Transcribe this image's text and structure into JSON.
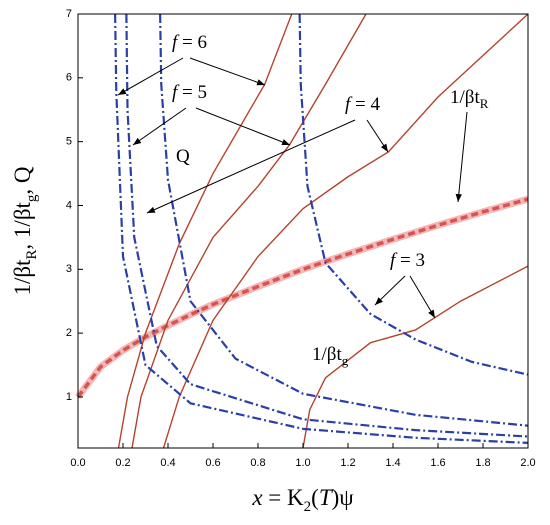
{
  "chart_data": {
    "type": "line",
    "xlim": [
      0,
      2
    ],
    "ylim": [
      0.2,
      7
    ],
    "xticks": [
      {
        "value": 0,
        "label": "0.0"
      },
      {
        "value": 0.2,
        "label": "0.2"
      },
      {
        "value": 0.4,
        "label": "0.4"
      },
      {
        "value": 0.6,
        "label": "0.6"
      },
      {
        "value": 0.8,
        "label": "0.8"
      },
      {
        "value": 1,
        "label": "1.0"
      },
      {
        "value": 1.2,
        "label": "1.2"
      },
      {
        "value": 1.4,
        "label": "1.4"
      },
      {
        "value": 1.6,
        "label": "1.6"
      },
      {
        "value": 1.8,
        "label": "1.8"
      },
      {
        "value": 2,
        "label": "2.0"
      }
    ],
    "yticks": [
      1,
      2,
      3,
      4,
      5,
      6,
      7
    ],
    "xlabel": [
      {
        "text": "x",
        "italic": true
      },
      {
        "text": " = K"
      },
      {
        "text": "2",
        "sub": true
      },
      {
        "text": "("
      },
      {
        "text": "T",
        "italic": true
      },
      {
        "text": ")ψ"
      }
    ],
    "ylabel": [
      {
        "text": "1/βt"
      },
      {
        "text": "R",
        "sub": true
      },
      {
        "text": ", 1/βt"
      },
      {
        "text": "g",
        "sub": true
      },
      {
        "text": ", Q"
      }
    ],
    "series": [
      {
        "color": "#d9534f",
        "style": "dashed",
        "x": [
          0,
          0.1,
          0.2,
          0.3,
          0.4,
          0.5,
          0.6,
          0.8,
          1.0,
          1.2,
          1.4,
          1.6,
          1.8,
          2.0
        ],
        "values": [
          1,
          1.47,
          1.73,
          1.94,
          2.12,
          2.29,
          2.45,
          2.73,
          3.0,
          3.24,
          3.47,
          3.69,
          3.9,
          4.1
        ]
      },
      {
        "color": "#b5432e",
        "style": "solid",
        "x": [
          0.18,
          0.22,
          0.3,
          0.45,
          0.6,
          0.83,
          0.95
        ],
        "values": [
          0.2,
          1.0,
          2.0,
          3.4,
          4.5,
          5.9,
          7
        ]
      },
      {
        "color": "#b5432e",
        "style": "solid",
        "x": [
          0.24,
          0.28,
          0.4,
          0.6,
          0.8,
          0.94,
          1.1,
          1.28
        ],
        "values": [
          0.2,
          1.0,
          2.2,
          3.5,
          4.3,
          4.95,
          5.9,
          7
        ]
      },
      {
        "color": "#b5432e",
        "style": "solid",
        "x": [
          0.38,
          0.45,
          0.6,
          0.8,
          1.0,
          1.2,
          1.38,
          1.6,
          1.8,
          2.0
        ],
        "values": [
          0.2,
          1.0,
          2.2,
          3.2,
          3.95,
          4.45,
          4.84,
          5.7,
          6.35,
          7
        ]
      },
      {
        "color": "#b5432e",
        "style": "solid",
        "x": [
          1.0,
          1.03,
          1.1,
          1.3,
          1.5,
          1.7,
          2.0
        ],
        "values": [
          0.2,
          0.8,
          1.3,
          1.85,
          2.05,
          2.5,
          3.05
        ]
      },
      {
        "color": "#2b3fa8",
        "style": "dashdot",
        "x": [
          0.165,
          0.17,
          0.2,
          0.3,
          0.5,
          1.0,
          1.5,
          2.0
        ],
        "values": [
          7,
          5.8,
          3.2,
          1.5,
          0.9,
          0.5,
          0.36,
          0.28
        ]
      },
      {
        "color": "#2b3fa8",
        "style": "dashdot",
        "x": [
          0.215,
          0.22,
          0.25,
          0.35,
          0.5,
          1.0,
          1.5,
          2.0
        ],
        "values": [
          7,
          5.5,
          3.5,
          1.8,
          1.2,
          0.65,
          0.48,
          0.38
        ]
      },
      {
        "color": "#2b3fa8",
        "style": "dashdot",
        "x": [
          0.365,
          0.37,
          0.4,
          0.5,
          0.7,
          1.0,
          1.5,
          2.0
        ],
        "values": [
          7,
          5.9,
          4.4,
          2.5,
          1.6,
          1.05,
          0.72,
          0.55
        ]
      },
      {
        "color": "#2b3fa8",
        "style": "dashdot",
        "x": [
          0.985,
          0.99,
          1.02,
          1.1,
          1.3,
          1.5,
          1.75,
          2.0
        ],
        "values": [
          7,
          5.9,
          4.3,
          3.1,
          2.3,
          1.9,
          1.55,
          1.35
        ]
      }
    ],
    "annotations": [
      {
        "text": "f",
        "rest": " = 6"
      },
      {
        "text": "f",
        "rest": " = 5"
      },
      {
        "text": "f",
        "rest": " = 4"
      },
      {
        "text": "f",
        "rest": " = 3"
      },
      {
        "text": "Q"
      },
      {
        "text": "1/βt",
        "sub": "R"
      },
      {
        "text": "1/βt",
        "sub": "g"
      }
    ]
  }
}
